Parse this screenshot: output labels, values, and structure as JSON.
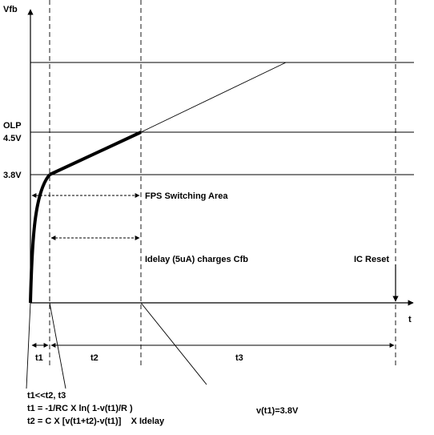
{
  "axes": {
    "y_label": "Vfb",
    "x_label": "t"
  },
  "levels": {
    "olp_line1": "OLP",
    "olp_line2": "4.5V",
    "clamp": "3.8V"
  },
  "annotations": {
    "fps_area": "FPS Switching Area",
    "idelay_charge": "Idelay (5uA) charges Cfb",
    "ic_reset": "IC Reset"
  },
  "intervals": {
    "t1": "t1",
    "t2": "t2",
    "t3": "t3"
  },
  "equations": {
    "line1": "t1<<t2, t3",
    "line2": "t1 = -1/RC X ln( 1-v(t1)/R )",
    "line3": "t2 = C X [v(t1+t2)-v(t1)]    X Idelay",
    "vt1": "v(t1)=3.8V"
  }
}
